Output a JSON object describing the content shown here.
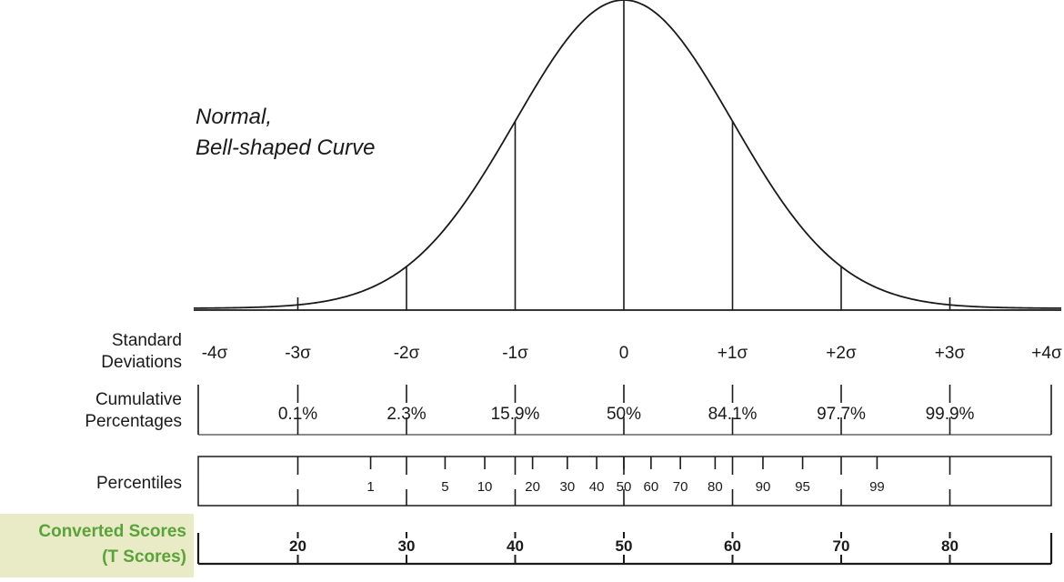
{
  "title": {
    "line1": "Normal,",
    "line2": "Bell-shaped Curve"
  },
  "row_labels": {
    "standard_deviations": [
      "Standard",
      "Deviations"
    ],
    "cumulative_percentages": [
      "Cumulative",
      "Percentages"
    ],
    "percentiles": "Percentiles",
    "converted_scores": [
      "Converted Scores",
      "(T Scores)"
    ]
  },
  "colors": {
    "line": "#1a1a1a",
    "converted_label": "#5aa23a",
    "converted_bg": "#e8ebc6"
  },
  "chart_data": {
    "type": "line",
    "title": "Normal, Bell-shaped Curve",
    "xlabel": "Standard Deviations",
    "ylabel": "",
    "xlim": [
      -4,
      4
    ],
    "sd_ticks": [
      {
        "value": -4,
        "label": "-4σ"
      },
      {
        "value": -3,
        "label": "-3σ"
      },
      {
        "value": -2,
        "label": "-2σ"
      },
      {
        "value": -1,
        "label": "-1σ"
      },
      {
        "value": 0,
        "label": "0"
      },
      {
        "value": 1,
        "label": "+1σ"
      },
      {
        "value": 2,
        "label": "+2σ"
      },
      {
        "value": 3,
        "label": "+3σ"
      },
      {
        "value": 4,
        "label": "+4σ"
      }
    ],
    "cumulative_percentages": [
      {
        "value": -3,
        "label": "0.1%"
      },
      {
        "value": -2,
        "label": "2.3%"
      },
      {
        "value": -1,
        "label": "15.9%"
      },
      {
        "value": 0,
        "label": "50%"
      },
      {
        "value": 1,
        "label": "84.1%"
      },
      {
        "value": 2,
        "label": "97.7%"
      },
      {
        "value": 3,
        "label": "99.9%"
      }
    ],
    "percentiles": [
      {
        "value": 1,
        "z": -2.33,
        "label": "1"
      },
      {
        "value": 5,
        "z": -1.645,
        "label": "5"
      },
      {
        "value": 10,
        "z": -1.28,
        "label": "10"
      },
      {
        "value": 20,
        "z": -0.84,
        "label": "20"
      },
      {
        "value": 30,
        "z": -0.52,
        "label": "30"
      },
      {
        "value": 40,
        "z": -0.25,
        "label": "40"
      },
      {
        "value": 50,
        "z": 0,
        "label": "50"
      },
      {
        "value": 60,
        "z": 0.25,
        "label": "60"
      },
      {
        "value": 70,
        "z": 0.52,
        "label": "70"
      },
      {
        "value": 80,
        "z": 0.84,
        "label": "80"
      },
      {
        "value": 90,
        "z": 1.28,
        "label": "90"
      },
      {
        "value": 95,
        "z": 1.645,
        "label": "95"
      },
      {
        "value": 99,
        "z": 2.33,
        "label": "99"
      }
    ],
    "t_scores": [
      {
        "value": -3,
        "label": "20"
      },
      {
        "value": -2,
        "label": "30"
      },
      {
        "value": -1,
        "label": "40"
      },
      {
        "value": 0,
        "label": "50"
      },
      {
        "value": 1,
        "label": "60"
      },
      {
        "value": 2,
        "label": "70"
      },
      {
        "value": 3,
        "label": "80"
      }
    ]
  }
}
